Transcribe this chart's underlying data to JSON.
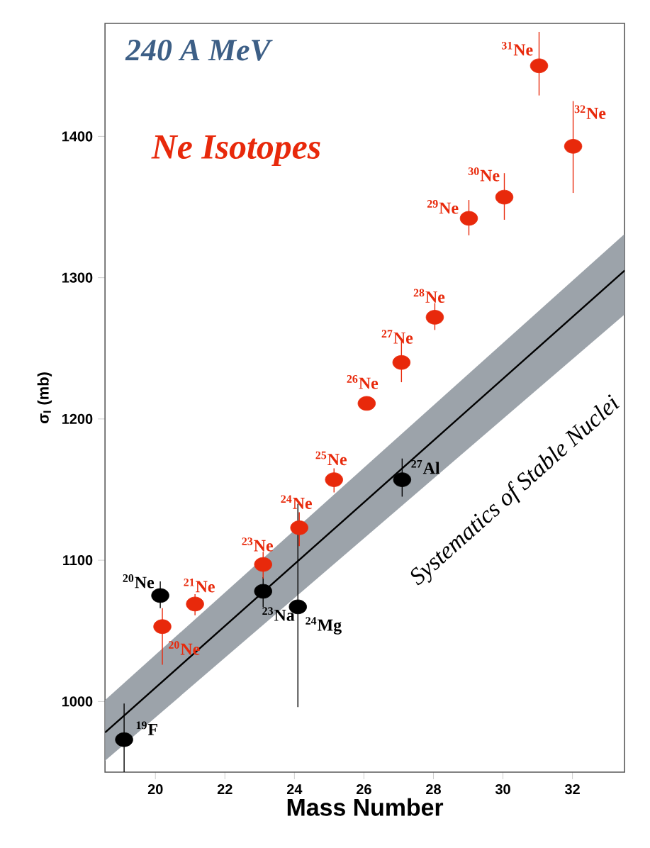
{
  "chart_data": {
    "type": "scatter",
    "title": "240 A MeV",
    "xlabel": "Mass Number",
    "ylabel": "σ$_{I}$ (mb)",
    "xlim": [
      18.55,
      33.5
    ],
    "ylim": [
      950,
      1480
    ],
    "xticks": [
      20,
      22,
      24,
      26,
      28,
      30,
      32
    ],
    "yticks": [
      1000,
      1100,
      1200,
      1300,
      1400
    ],
    "marker": "circle",
    "series": [
      {
        "name": "Systematics of Stable Nuclei",
        "type": "line",
        "color": "#000000",
        "x": [
          18.55,
          33.5
        ],
        "values": [
          978,
          1305
        ],
        "lower": [
          958,
          1274
        ],
        "upper": [
          1001,
          1331
        ],
        "marker": "none"
      },
      {
        "color": "#000000",
        "x": [
          19.1,
          20.14,
          23.1,
          24.1,
          27.1
        ],
        "values": [
          973,
          1075,
          1078,
          1067,
          1157
        ],
        "errors": [
          [
            950,
            998.5
          ],
          [
            1066,
            1085
          ],
          [
            1067,
            1088
          ],
          [
            996,
            1140
          ],
          [
            1145,
            1172
          ]
        ]
      },
      {
        "name": "Ne Isotopes",
        "color": "#e8290b",
        "x": [
          20.2,
          21.14,
          23.1,
          24.14,
          25.14,
          26.08,
          27.08,
          28.04,
          29.02,
          30.04,
          31.04,
          32.02
        ],
        "values": [
          1053,
          1069,
          1097,
          1123,
          1157,
          1211,
          1240,
          1272,
          1342,
          1357,
          1450,
          1393
        ],
        "errors": [
          [
            1026,
            1066
          ],
          [
            1061,
            1076
          ],
          [
            1087,
            1106
          ],
          [
            1110,
            1134
          ],
          [
            1148,
            1165
          ],
          null,
          [
            1226,
            1256
          ],
          [
            1263,
            1282
          ],
          [
            1330,
            1355
          ],
          [
            1341,
            1374
          ],
          [
            1429,
            1474
          ],
          [
            1360,
            1425
          ]
        ]
      }
    ],
    "annotations": [
      {
        "text": "$^{19}$F",
        "x": 19.1,
        "y": 973
      },
      {
        "text": "$^{20}$Ne",
        "x": 20.14,
        "y": 1075
      },
      {
        "text": "$^{20}$Ne",
        "x": 20.2,
        "y": 1053
      },
      {
        "text": "$^{21}$Ne",
        "x": 21.14,
        "y": 1069
      },
      {
        "text": "$^{23}$Ne",
        "x": 23.1,
        "y": 1097
      },
      {
        "text": "$^{23}$Na",
        "x": 23.1,
        "y": 1078
      },
      {
        "text": "$^{24}$Ne",
        "x": 24.14,
        "y": 1123
      },
      {
        "text": "$^{24}$Mg",
        "x": 24.1,
        "y": 1067
      },
      {
        "text": "$^{25}$Ne",
        "x": 25.14,
        "y": 1157
      },
      {
        "text": "$^{26}$Ne",
        "x": 26.08,
        "y": 1211
      },
      {
        "text": "$^{27}$Ne",
        "x": 27.08,
        "y": 1240
      },
      {
        "text": "$^{27}$Al",
        "x": 27.1,
        "y": 1157
      },
      {
        "text": "$^{28}$Ne",
        "x": 28.04,
        "y": 1272
      },
      {
        "text": "$^{29}$Ne",
        "x": 29.02,
        "y": 1342
      },
      {
        "text": "$^{30}$Ne",
        "x": 30.04,
        "y": 1357
      },
      {
        "text": "$^{31}$Ne",
        "x": 31.04,
        "y": 1450
      },
      {
        "text": "$^{32}$Ne",
        "x": 32.02,
        "y": 1393
      }
    ]
  }
}
